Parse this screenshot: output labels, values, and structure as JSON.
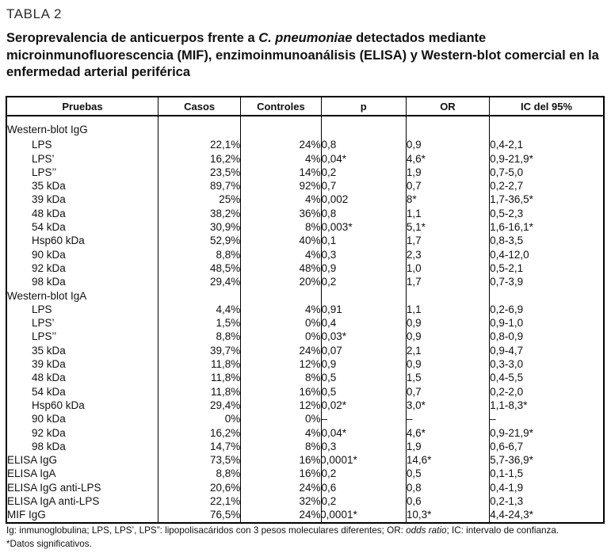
{
  "table_label": "TABLA 2",
  "title_parts": [
    {
      "text": "Seroprevalencia de anticuerpos frente a ",
      "italic": false
    },
    {
      "text": "C. pneumoniae",
      "italic": true
    },
    {
      "text": " detectados mediante microinmunofluorescencia (MIF), enzimoinmunoanálisis (ELISA) y Western-blot comercial en la enfermedad arterial periférica",
      "italic": false
    }
  ],
  "chart_data": {
    "type": "table",
    "title": "Seroprevalencia de anticuerpos frente a C. pneumoniae detectados mediante microinmunofluorescencia (MIF), enzimoinmunoanálisis (ELISA) y Western-blot comercial en la enfermedad arterial periférica"
  },
  "table": {
    "columns": [
      "Pruebas",
      "Casos",
      "Controles",
      "p",
      "OR",
      "IC del 95%"
    ],
    "rows": [
      {
        "label": "Western-blot IgG",
        "section": true,
        "indent": false,
        "casos": "",
        "controles": "",
        "p": "",
        "or": "",
        "ic": ""
      },
      {
        "label": "LPS",
        "section": false,
        "indent": true,
        "casos": "22,1%",
        "controles": "24%",
        "p": "0,8",
        "or": "0,9",
        "ic": "0,4-2,1"
      },
      {
        "label": "LPS’",
        "section": false,
        "indent": true,
        "casos": "16,2%",
        "controles": "4%",
        "p": "0,04*",
        "or": "4,6*",
        "ic": "0,9-21,9*"
      },
      {
        "label": "LPS’’",
        "section": false,
        "indent": true,
        "casos": "23,5%",
        "controles": "14%",
        "p": "0,2",
        "or": "1,9",
        "ic": "0,7-5,0"
      },
      {
        "label": "35 kDa",
        "section": false,
        "indent": true,
        "casos": "89,7%",
        "controles": "92%",
        "p": "0,7",
        "or": "0,7",
        "ic": "0,2-2,7"
      },
      {
        "label": "39 kDa",
        "section": false,
        "indent": true,
        "casos": "25%",
        "controles": "4%",
        "p": "0,002",
        "or": "8*",
        "ic": "1,7-36,5*"
      },
      {
        "label": "48 kDa",
        "section": false,
        "indent": true,
        "casos": "38,2%",
        "controles": "36%",
        "p": "0,8",
        "or": "1,1",
        "ic": "0,5-2,3"
      },
      {
        "label": "54 kDa",
        "section": false,
        "indent": true,
        "casos": "30,9%",
        "controles": "8%",
        "p": "0,003*",
        "or": "5,1*",
        "ic": "1,6-16,1*"
      },
      {
        "label": "Hsp60 kDa",
        "section": false,
        "indent": true,
        "casos": "52,9%",
        "controles": "40%",
        "p": "0,1",
        "or": "1,7",
        "ic": "0,8-3,5"
      },
      {
        "label": "90 kDa",
        "section": false,
        "indent": true,
        "casos": "8,8%",
        "controles": "4%",
        "p": "0,3",
        "or": "2,3",
        "ic": "0,4-12,0"
      },
      {
        "label": "92 kDa",
        "section": false,
        "indent": true,
        "casos": "48,5%",
        "controles": "48%",
        "p": "0,9",
        "or": "1,0",
        "ic": "0,5-2,1"
      },
      {
        "label": "98 kDa",
        "section": false,
        "indent": true,
        "casos": "29,4%",
        "controles": "20%",
        "p": "0,2",
        "or": "1,7",
        "ic": "0,7-3,9"
      },
      {
        "label": "Western-blot IgA",
        "section": true,
        "indent": false,
        "casos": "",
        "controles": "",
        "p": "",
        "or": "",
        "ic": ""
      },
      {
        "label": "LPS",
        "section": false,
        "indent": true,
        "casos": "4,4%",
        "controles": "4%",
        "p": "0,91",
        "or": "1,1",
        "ic": "0,2-6,9"
      },
      {
        "label": "LPS’",
        "section": false,
        "indent": true,
        "casos": "1,5%",
        "controles": "0%",
        "p": "0,4",
        "or": "0,9",
        "ic": "0,9-1,0"
      },
      {
        "label": "LPS’’",
        "section": false,
        "indent": true,
        "casos": "8,8%",
        "controles": "0%",
        "p": "0,03*",
        "or": "0,9",
        "ic": "0,8-0,9"
      },
      {
        "label": "35 kDa",
        "section": false,
        "indent": true,
        "casos": "39,7%",
        "controles": "24%",
        "p": "0,07",
        "or": "2,1",
        "ic": "0,9-4,7"
      },
      {
        "label": "39 kDa",
        "section": false,
        "indent": true,
        "casos": "11,8%",
        "controles": "12%",
        "p": "0,9",
        "or": "0,9",
        "ic": "0,3-3,0"
      },
      {
        "label": "48 kDa",
        "section": false,
        "indent": true,
        "casos": "11,8%",
        "controles": "8%",
        "p": "0,5",
        "or": "1,5",
        "ic": "0,4-5,5"
      },
      {
        "label": "54 kDa",
        "section": false,
        "indent": true,
        "casos": "11,8%",
        "controles": "16%",
        "p": "0,5",
        "or": "0,7",
        "ic": "0,2-2,0"
      },
      {
        "label": "Hsp60 kDa",
        "section": false,
        "indent": true,
        "casos": "29,4%",
        "controles": "12%",
        "p": "0,02*",
        "or": "3,0*",
        "ic": "1,1-8,3*"
      },
      {
        "label": "90 kDa",
        "section": false,
        "indent": true,
        "casos": "0%",
        "controles": "0%",
        "p": "–",
        "or": "–",
        "ic": "–"
      },
      {
        "label": "92 kDa",
        "section": false,
        "indent": true,
        "casos": "16,2%",
        "controles": "4%",
        "p": "0,04*",
        "or": "4,6*",
        "ic": "0,9-21,9*"
      },
      {
        "label": "98 kDa",
        "section": false,
        "indent": true,
        "casos": "14,7%",
        "controles": "8%",
        "p": "0,3",
        "or": "1,9",
        "ic": "0,6-6,7"
      },
      {
        "label": "ELISA IgG",
        "section": false,
        "indent": false,
        "casos": "73,5%",
        "controles": "16%",
        "p": "< 0,0001*",
        "or": "14,6*",
        "ic": "5,7-36,9*"
      },
      {
        "label": "ELISA IgA",
        "section": false,
        "indent": false,
        "casos": "8,8%",
        "controles": "16%",
        "p": "0,2",
        "or": "0,5",
        "ic": "0,1-1,5"
      },
      {
        "label": "ELISA IgG anti-LPS",
        "section": false,
        "indent": false,
        "casos": "20,6%",
        "controles": "24%",
        "p": "0,6",
        "or": "0,8",
        "ic": "0,4-1,9"
      },
      {
        "label": "ELISA IgA anti-LPS",
        "section": false,
        "indent": false,
        "casos": "22,1%",
        "controles": "32%",
        "p": "0,2",
        "or": "0,6",
        "ic": "0,2-1,3"
      },
      {
        "label": "MIF IgG",
        "section": false,
        "indent": false,
        "casos": "76,5%",
        "controles": "24%",
        "p": "< 0,0001*",
        "or": "10,3*",
        "ic": "4,4-24,3*"
      }
    ]
  },
  "footnote_parts": [
    {
      "text": "Ig: inmunoglobulina; LPS, LPS’, LPS”: lipopolisacáridos con 3 pesos moleculares diferentes; OR: ",
      "italic": false
    },
    {
      "text": "odds ratio",
      "italic": true
    },
    {
      "text": "; IC: intervalo de confianza.",
      "italic": false
    }
  ],
  "footnotes": {
    "significant": "*Datos significativos."
  },
  "colors": {
    "text": "#111111",
    "border": "#000000",
    "background": "#ffffff"
  }
}
